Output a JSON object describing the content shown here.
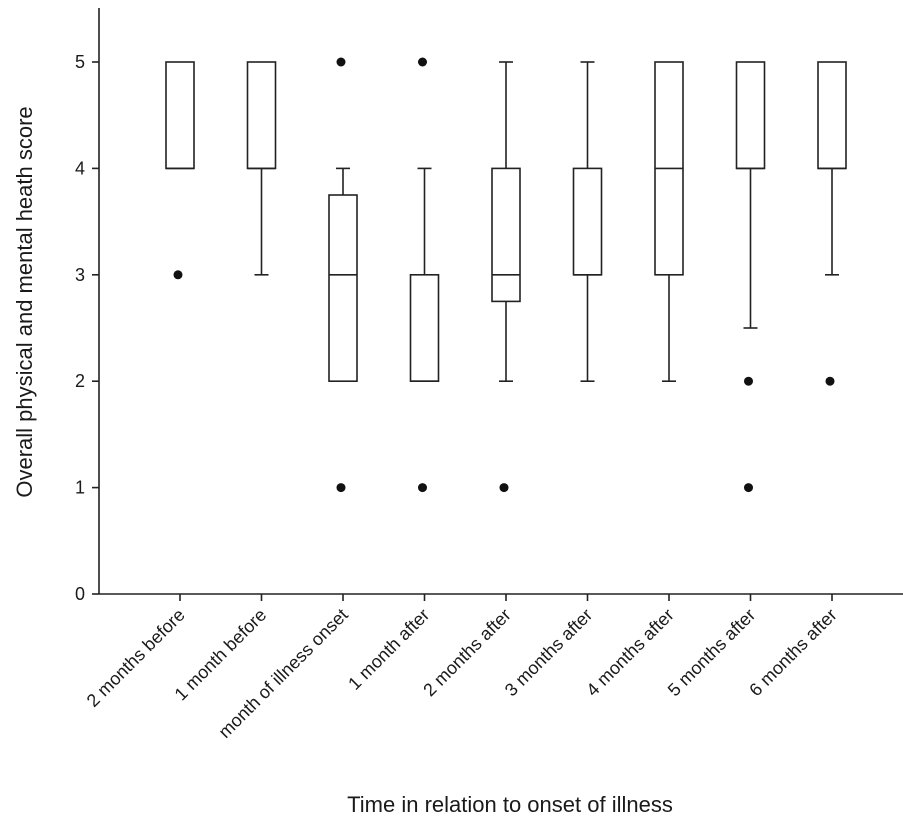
{
  "chart_data": {
    "type": "box",
    "xlabel": "Time in relation to onset of illness",
    "ylabel": "Overall physical and mental heath score",
    "ylim": [
      0,
      5.5
    ],
    "yticks": [
      0,
      1,
      2,
      3,
      4,
      5
    ],
    "grid": false,
    "categories": [
      "2 months before",
      "1 month before",
      "month of illness onset",
      "1 month after",
      "2 months after",
      "3 months after",
      "4 months after",
      "5 months after",
      "6 months after"
    ],
    "boxes": [
      {
        "category": "2 months before",
        "whisker_low": 4,
        "q1": 4,
        "median": 4,
        "q3": 5,
        "whisker_high": 5,
        "outliers": [
          3
        ]
      },
      {
        "category": "1 month before",
        "whisker_low": 3,
        "q1": 4,
        "median": 4,
        "q3": 5,
        "whisker_high": 5,
        "outliers": []
      },
      {
        "category": "month of illness onset",
        "whisker_low": 2,
        "q1": 2,
        "median": 3,
        "q3": 3.75,
        "whisker_high": 4,
        "outliers": [
          1,
          5
        ]
      },
      {
        "category": "1 month after",
        "whisker_low": 2,
        "q1": 2,
        "median": 2,
        "q3": 3,
        "whisker_high": 4,
        "outliers": [
          1,
          5
        ]
      },
      {
        "category": "2 months after",
        "whisker_low": 2,
        "q1": 2.75,
        "median": 3,
        "q3": 4,
        "whisker_high": 5,
        "outliers": [
          1
        ]
      },
      {
        "category": "3 months after",
        "whisker_low": 2,
        "q1": 3,
        "median": 3,
        "q3": 4,
        "whisker_high": 5,
        "outliers": []
      },
      {
        "category": "4 months after",
        "whisker_low": 2,
        "q1": 3,
        "median": 4,
        "q3": 5,
        "whisker_high": 5,
        "outliers": []
      },
      {
        "category": "5 months after",
        "whisker_low": 2.5,
        "q1": 4,
        "median": 4,
        "q3": 5,
        "whisker_high": 5,
        "outliers": [
          1,
          2
        ]
      },
      {
        "category": "6 months after",
        "whisker_low": 3,
        "q1": 4,
        "median": 4,
        "q3": 5,
        "whisker_high": 5,
        "outliers": [
          2
        ]
      }
    ],
    "colors": {
      "box_fill": "#ffffff",
      "stroke": "#222222",
      "outlier": "#111111"
    }
  }
}
